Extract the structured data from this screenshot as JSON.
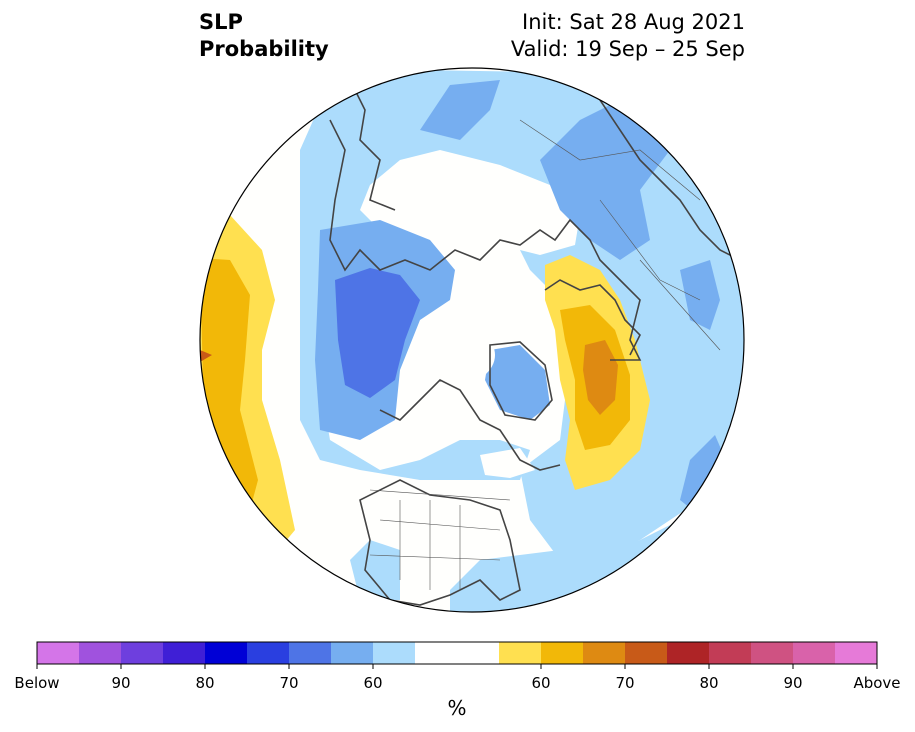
{
  "title": {
    "left_line1": "SLP",
    "left_line2": "Probability",
    "right_line1": "Init: Sat 28 Aug 2021",
    "right_line2": "Valid: 19 Sep – 25 Sep"
  },
  "colorbar": {
    "unit_label": "%",
    "colors": [
      "#d475e8",
      "#a052de",
      "#6e3fde",
      "#3f1fd6",
      "#0000d6",
      "#2a3fe0",
      "#4e74e6",
      "#76aef0",
      "#acdcfc",
      "#ffffff",
      "#ffffff",
      "#ffe050",
      "#f2b808",
      "#de8a12",
      "#c85a18",
      "#ae2426",
      "#c23c56",
      "#cf5282",
      "#d962aa",
      "#e67ad8"
    ],
    "tick_labels": [
      "Below",
      "90",
      "80",
      "70",
      "60",
      "60",
      "70",
      "80",
      "90",
      "Above"
    ]
  },
  "map": {
    "projection": "north polar stereographic",
    "legend_colors": {
      "below_60": "#acdcfc",
      "below_65": "#76aef0",
      "below_70": "#4e74e6",
      "above_60": "#ffe050",
      "above_65": "#f2b808",
      "above_70": "#de8a12",
      "above_75": "#c85a18"
    }
  }
}
